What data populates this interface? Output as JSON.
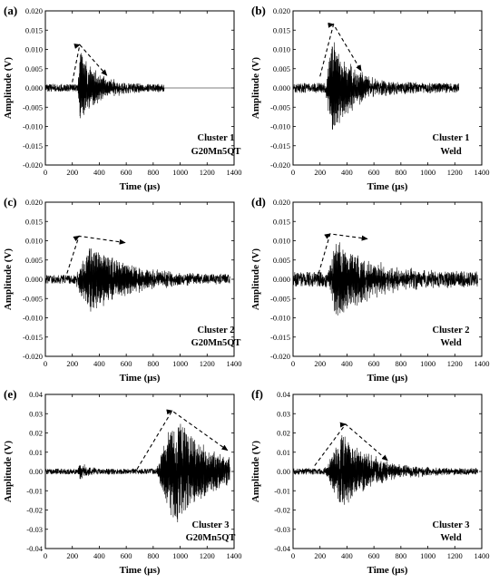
{
  "chart_data": [
    {
      "type": "line",
      "panel": "(a)",
      "xlabel": "Time (μs)",
      "ylabel": "Amplitude (V)",
      "xlim": [
        0,
        1400
      ],
      "ylim": [
        -0.02,
        0.02
      ],
      "xticks": [
        0,
        200,
        400,
        600,
        800,
        1000,
        1200,
        1400
      ],
      "yticks": [
        -0.02,
        -0.015,
        -0.01,
        -0.005,
        0.0,
        0.005,
        0.01,
        0.015,
        0.02
      ],
      "ytick_labels": [
        "-0.020",
        "-0.015",
        "-0.010",
        "-0.005",
        "0.000",
        "0.005",
        "0.010",
        "0.015",
        "0.020"
      ],
      "annotation": [
        "Cluster 1",
        "G20Mn5QT"
      ],
      "waveform": {
        "signal_start": 0,
        "signal_end": 880,
        "trace_end": 1380,
        "noise": 0.0006,
        "bursts": [
          {
            "start": 240,
            "peak": 260,
            "decay": 140,
            "amp": 0.009
          }
        ]
      },
      "envelope_arrow": [
        [
          200,
          0.0015
        ],
        [
          255,
          0.0112
        ],
        [
          455,
          0.0033
        ]
      ],
      "grid": false
    },
    {
      "type": "line",
      "panel": "(b)",
      "xlabel": "Time (μs)",
      "ylabel": "Amplitude (V)",
      "xlim": [
        0,
        1400
      ],
      "ylim": [
        -0.02,
        0.02
      ],
      "xticks": [
        0,
        200,
        400,
        600,
        800,
        1000,
        1200,
        1400
      ],
      "yticks": [
        -0.02,
        -0.015,
        -0.01,
        -0.005,
        0.0,
        0.005,
        0.01,
        0.015,
        0.02
      ],
      "ytick_labels": [
        "-0.020",
        "-0.015",
        "-0.010",
        "-0.005",
        "0.000",
        "0.005",
        "0.010",
        "0.015",
        "0.020"
      ],
      "annotation": [
        "Cluster 1",
        "Weld"
      ],
      "waveform": {
        "signal_start": 0,
        "signal_end": 1230,
        "trace_end": 1230,
        "noise": 0.0008,
        "bursts": [
          {
            "start": 240,
            "peak": 290,
            "decay": 160,
            "amp": 0.012
          }
        ]
      },
      "envelope_arrow": [
        [
          200,
          0.003
        ],
        [
          300,
          0.0165
        ],
        [
          505,
          0.0045
        ]
      ],
      "grid": false
    },
    {
      "type": "line",
      "panel": "(c)",
      "xlabel": "Time (μs)",
      "ylabel": "Amplitude (V)",
      "xlim": [
        0,
        1400
      ],
      "ylim": [
        -0.02,
        0.02
      ],
      "xticks": [
        0,
        200,
        400,
        600,
        800,
        1000,
        1200,
        1400
      ],
      "yticks": [
        -0.02,
        -0.015,
        -0.01,
        -0.005,
        0.0,
        0.005,
        0.01,
        0.015,
        0.02
      ],
      "ytick_labels": [
        "-0.020",
        "-0.015",
        "-0.010",
        "-0.005",
        "0.000",
        "0.005",
        "0.010",
        "0.015",
        "0.020"
      ],
      "annotation": [
        "Cluster 2",
        "G20Mn5QT"
      ],
      "waveform": {
        "signal_start": 0,
        "signal_end": 1370,
        "trace_end": 1370,
        "noise": 0.0007,
        "bursts": [
          {
            "start": 220,
            "peak": 330,
            "decay": 300,
            "amp": 0.0085
          }
        ]
      },
      "envelope_arrow": [
        [
          160,
          0.0015
        ],
        [
          250,
          0.0112
        ],
        [
          590,
          0.0095
        ]
      ],
      "grid": false
    },
    {
      "type": "line",
      "panel": "(d)",
      "xlabel": "Time (μs)",
      "ylabel": "Amplitude (V)",
      "xlim": [
        0,
        1400
      ],
      "ylim": [
        -0.02,
        0.02
      ],
      "xticks": [
        0,
        200,
        400,
        600,
        800,
        1000,
        1200,
        1400
      ],
      "yticks": [
        -0.02,
        -0.015,
        -0.01,
        -0.005,
        0.0,
        0.005,
        0.01,
        0.015,
        0.02
      ],
      "ytick_labels": [
        "-0.020",
        "-0.015",
        "-0.010",
        "-0.005",
        "0.000",
        "0.005",
        "0.010",
        "0.015",
        "0.020"
      ],
      "annotation": [
        "Cluster 2",
        "Weld"
      ],
      "waveform": {
        "signal_start": 0,
        "signal_end": 1370,
        "trace_end": 1370,
        "noise": 0.0012,
        "bursts": [
          {
            "start": 240,
            "peak": 330,
            "decay": 260,
            "amp": 0.0095
          }
        ]
      },
      "envelope_arrow": [
        [
          190,
          0.0015
        ],
        [
          275,
          0.0118
        ],
        [
          550,
          0.0105
        ]
      ],
      "grid": false
    },
    {
      "type": "line",
      "panel": "(e)",
      "xlabel": "Time (μs)",
      "ylabel": "Amplitude (V)",
      "xlim": [
        0,
        1400
      ],
      "ylim": [
        -0.04,
        0.04
      ],
      "xticks": [
        0,
        200,
        400,
        600,
        800,
        1000,
        1200,
        1400
      ],
      "yticks": [
        -0.04,
        -0.03,
        -0.02,
        -0.01,
        0.0,
        0.01,
        0.02,
        0.03,
        0.04
      ],
      "ytick_labels": [
        "-0.04",
        "-0.03",
        "-0.02",
        "-0.01",
        "0.00",
        "0.01",
        "0.02",
        "0.03",
        "0.04"
      ],
      "annotation": [
        "Cluster 3",
        "G20Mn5QT"
      ],
      "waveform": {
        "signal_start": 0,
        "signal_end": 1370,
        "trace_end": 1370,
        "noise": 0.0009,
        "bursts": [
          {
            "start": 230,
            "peak": 260,
            "decay": 60,
            "amp": 0.004
          },
          {
            "start": 820,
            "peak": 960,
            "decay": 260,
            "amp": 0.029
          }
        ]
      },
      "envelope_arrow": [
        [
          680,
          0.0012
        ],
        [
          940,
          0.0315
        ],
        [
          1350,
          0.011
        ]
      ],
      "grid": false
    },
    {
      "type": "line",
      "panel": "(f)",
      "xlabel": "Time (μs)",
      "ylabel": "Amplitude (V)",
      "xlim": [
        0,
        1400
      ],
      "ylim": [
        -0.04,
        0.04
      ],
      "xticks": [
        0,
        200,
        400,
        600,
        800,
        1000,
        1200,
        1400
      ],
      "yticks": [
        -0.04,
        -0.03,
        -0.02,
        -0.01,
        0.0,
        0.01,
        0.02,
        0.03,
        0.04
      ],
      "ytick_labels": [
        "-0.04",
        "-0.03",
        "-0.02",
        "-0.01",
        "0.00",
        "0.01",
        "0.02",
        "0.03",
        "0.04"
      ],
      "annotation": [
        "Cluster 3",
        "Weld"
      ],
      "waveform": {
        "signal_start": 0,
        "signal_end": 1370,
        "trace_end": 1370,
        "noise": 0.001,
        "bursts": [
          {
            "start": 230,
            "peak": 370,
            "decay": 230,
            "amp": 0.019
          }
        ]
      },
      "envelope_arrow": [
        [
          160,
          0.003
        ],
        [
          390,
          0.0245
        ],
        [
          700,
          0.0058
        ]
      ],
      "grid": false
    }
  ]
}
